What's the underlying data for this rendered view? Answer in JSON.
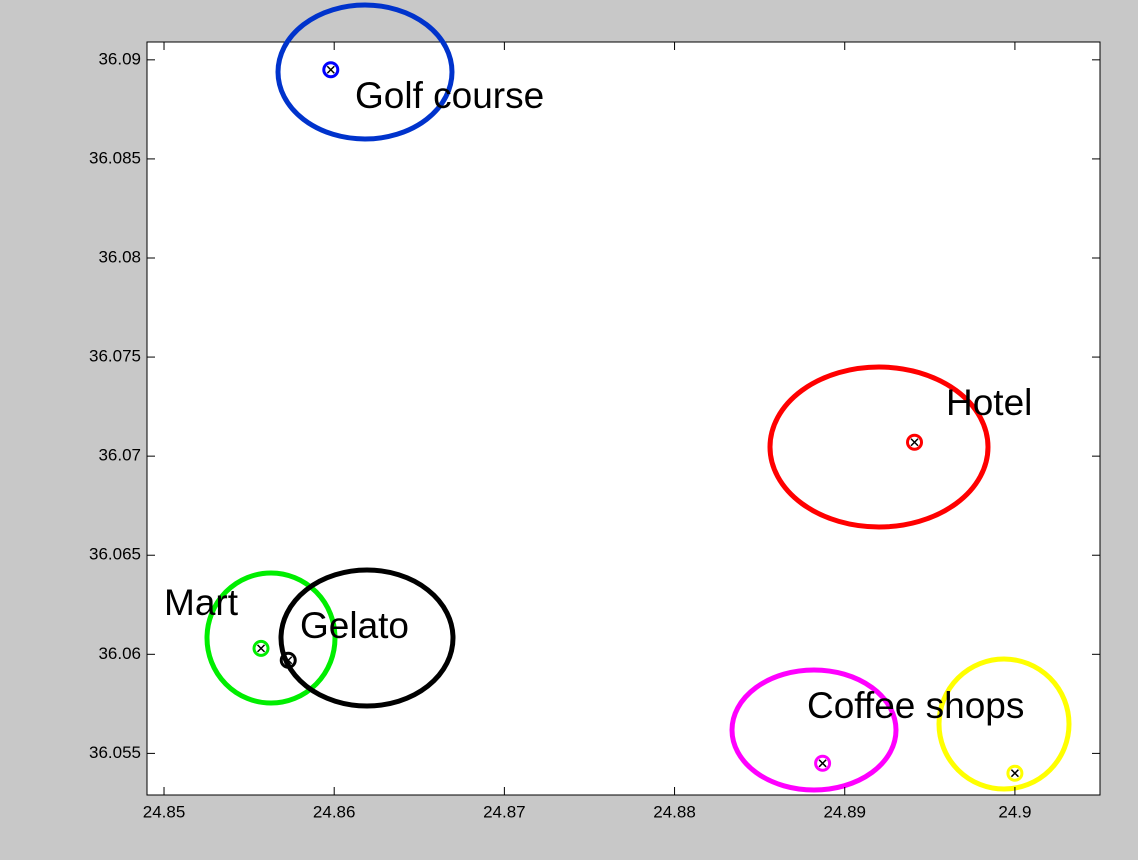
{
  "chart_data": {
    "type": "scatter",
    "points": [
      {
        "color": "#0000ff",
        "x": 24.8598,
        "y": 36.0895
      },
      {
        "color": "#ff0000",
        "x": 24.8941,
        "y": 36.0707
      },
      {
        "color": "#00ee00",
        "x": 24.8557,
        "y": 36.0603
      },
      {
        "color": "#000000",
        "x": 24.8573,
        "y": 36.0597
      },
      {
        "color": "#ff00ff",
        "x": 24.8887,
        "y": 36.0545
      },
      {
        "color": "#ffff00",
        "x": 24.9,
        "y": 36.054
      }
    ],
    "annotations": [
      "Golf course",
      "Hotel",
      "Mart",
      "Gelato",
      "Coffee shops"
    ],
    "xlim": [
      24.849,
      24.905
    ],
    "ylim": [
      36.0529,
      36.0909
    ],
    "xticks": [
      24.85,
      24.86,
      24.87,
      24.88,
      24.89,
      24.9
    ],
    "yticks": [
      36.055,
      36.06,
      36.065,
      36.07,
      36.075,
      36.08,
      36.085,
      36.09
    ]
  }
}
